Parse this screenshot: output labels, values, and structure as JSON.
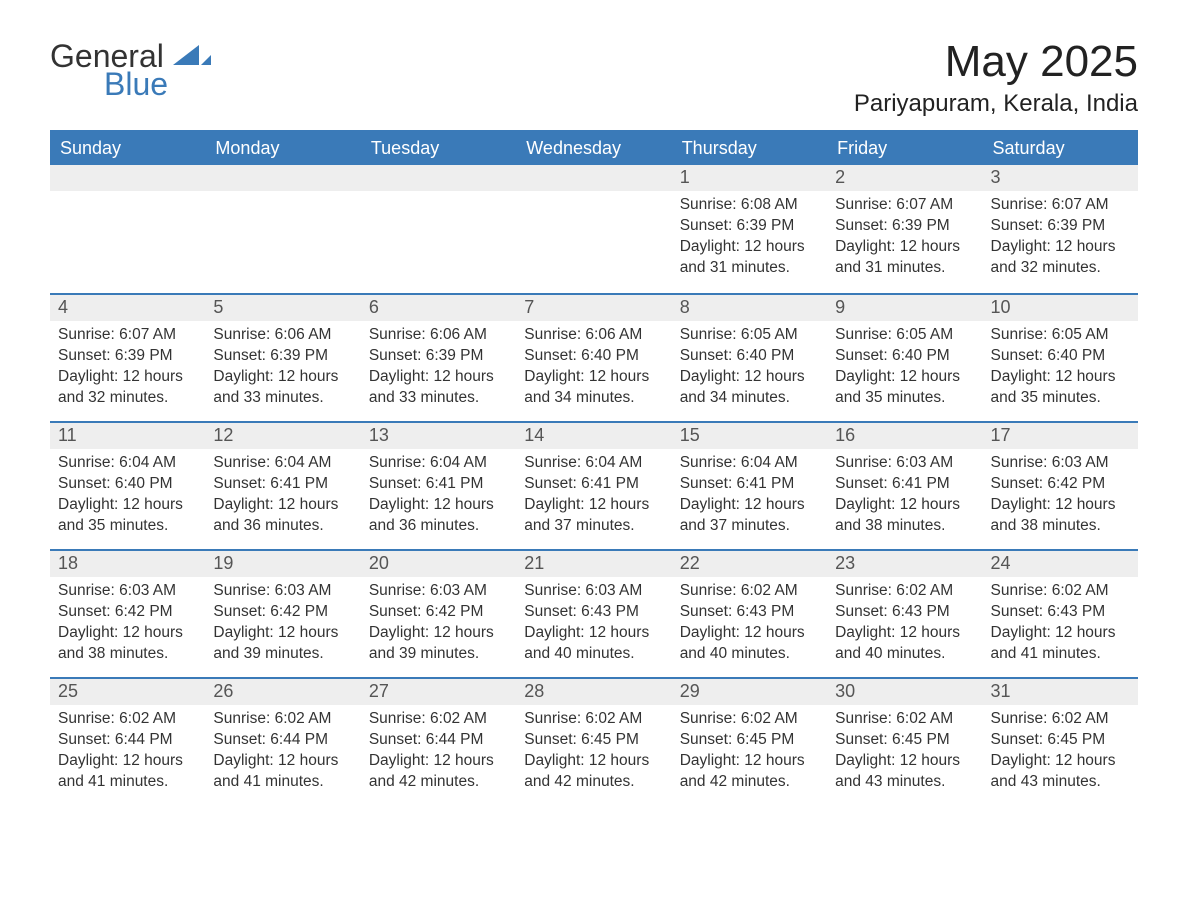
{
  "brand": {
    "word1": "General",
    "word2": "Blue",
    "logo_color": "#3a7ab8",
    "text_color_dark": "#333333"
  },
  "title": "May 2025",
  "location": "Pariyapuram, Kerala, India",
  "colors": {
    "header_bg": "#3a7ab8",
    "header_text": "#ffffff",
    "daynum_bg": "#eeeeee",
    "daynum_text": "#555555",
    "body_text": "#333333",
    "rule": "#3a7ab8",
    "page_bg": "#ffffff"
  },
  "typography": {
    "title_fontsize": 44,
    "location_fontsize": 24,
    "dow_fontsize": 18,
    "daynum_fontsize": 18,
    "body_fontsize": 15.5,
    "logo_fontsize": 32,
    "font_family": "Arial"
  },
  "days_of_week": [
    "Sunday",
    "Monday",
    "Tuesday",
    "Wednesday",
    "Thursday",
    "Friday",
    "Saturday"
  ],
  "weeks": [
    [
      {
        "empty": true
      },
      {
        "empty": true
      },
      {
        "empty": true
      },
      {
        "empty": true
      },
      {
        "num": "1",
        "sunrise": "6:08 AM",
        "sunset": "6:39 PM",
        "daylight": "12 hours and 31 minutes."
      },
      {
        "num": "2",
        "sunrise": "6:07 AM",
        "sunset": "6:39 PM",
        "daylight": "12 hours and 31 minutes."
      },
      {
        "num": "3",
        "sunrise": "6:07 AM",
        "sunset": "6:39 PM",
        "daylight": "12 hours and 32 minutes."
      }
    ],
    [
      {
        "num": "4",
        "sunrise": "6:07 AM",
        "sunset": "6:39 PM",
        "daylight": "12 hours and 32 minutes."
      },
      {
        "num": "5",
        "sunrise": "6:06 AM",
        "sunset": "6:39 PM",
        "daylight": "12 hours and 33 minutes."
      },
      {
        "num": "6",
        "sunrise": "6:06 AM",
        "sunset": "6:39 PM",
        "daylight": "12 hours and 33 minutes."
      },
      {
        "num": "7",
        "sunrise": "6:06 AM",
        "sunset": "6:40 PM",
        "daylight": "12 hours and 34 minutes."
      },
      {
        "num": "8",
        "sunrise": "6:05 AM",
        "sunset": "6:40 PM",
        "daylight": "12 hours and 34 minutes."
      },
      {
        "num": "9",
        "sunrise": "6:05 AM",
        "sunset": "6:40 PM",
        "daylight": "12 hours and 35 minutes."
      },
      {
        "num": "10",
        "sunrise": "6:05 AM",
        "sunset": "6:40 PM",
        "daylight": "12 hours and 35 minutes."
      }
    ],
    [
      {
        "num": "11",
        "sunrise": "6:04 AM",
        "sunset": "6:40 PM",
        "daylight": "12 hours and 35 minutes."
      },
      {
        "num": "12",
        "sunrise": "6:04 AM",
        "sunset": "6:41 PM",
        "daylight": "12 hours and 36 minutes."
      },
      {
        "num": "13",
        "sunrise": "6:04 AM",
        "sunset": "6:41 PM",
        "daylight": "12 hours and 36 minutes."
      },
      {
        "num": "14",
        "sunrise": "6:04 AM",
        "sunset": "6:41 PM",
        "daylight": "12 hours and 37 minutes."
      },
      {
        "num": "15",
        "sunrise": "6:04 AM",
        "sunset": "6:41 PM",
        "daylight": "12 hours and 37 minutes."
      },
      {
        "num": "16",
        "sunrise": "6:03 AM",
        "sunset": "6:41 PM",
        "daylight": "12 hours and 38 minutes."
      },
      {
        "num": "17",
        "sunrise": "6:03 AM",
        "sunset": "6:42 PM",
        "daylight": "12 hours and 38 minutes."
      }
    ],
    [
      {
        "num": "18",
        "sunrise": "6:03 AM",
        "sunset": "6:42 PM",
        "daylight": "12 hours and 38 minutes."
      },
      {
        "num": "19",
        "sunrise": "6:03 AM",
        "sunset": "6:42 PM",
        "daylight": "12 hours and 39 minutes."
      },
      {
        "num": "20",
        "sunrise": "6:03 AM",
        "sunset": "6:42 PM",
        "daylight": "12 hours and 39 minutes."
      },
      {
        "num": "21",
        "sunrise": "6:03 AM",
        "sunset": "6:43 PM",
        "daylight": "12 hours and 40 minutes."
      },
      {
        "num": "22",
        "sunrise": "6:02 AM",
        "sunset": "6:43 PM",
        "daylight": "12 hours and 40 minutes."
      },
      {
        "num": "23",
        "sunrise": "6:02 AM",
        "sunset": "6:43 PM",
        "daylight": "12 hours and 40 minutes."
      },
      {
        "num": "24",
        "sunrise": "6:02 AM",
        "sunset": "6:43 PM",
        "daylight": "12 hours and 41 minutes."
      }
    ],
    [
      {
        "num": "25",
        "sunrise": "6:02 AM",
        "sunset": "6:44 PM",
        "daylight": "12 hours and 41 minutes."
      },
      {
        "num": "26",
        "sunrise": "6:02 AM",
        "sunset": "6:44 PM",
        "daylight": "12 hours and 41 minutes."
      },
      {
        "num": "27",
        "sunrise": "6:02 AM",
        "sunset": "6:44 PM",
        "daylight": "12 hours and 42 minutes."
      },
      {
        "num": "28",
        "sunrise": "6:02 AM",
        "sunset": "6:45 PM",
        "daylight": "12 hours and 42 minutes."
      },
      {
        "num": "29",
        "sunrise": "6:02 AM",
        "sunset": "6:45 PM",
        "daylight": "12 hours and 42 minutes."
      },
      {
        "num": "30",
        "sunrise": "6:02 AM",
        "sunset": "6:45 PM",
        "daylight": "12 hours and 43 minutes."
      },
      {
        "num": "31",
        "sunrise": "6:02 AM",
        "sunset": "6:45 PM",
        "daylight": "12 hours and 43 minutes."
      }
    ]
  ],
  "labels": {
    "sunrise": "Sunrise: ",
    "sunset": "Sunset: ",
    "daylight": "Daylight: "
  }
}
